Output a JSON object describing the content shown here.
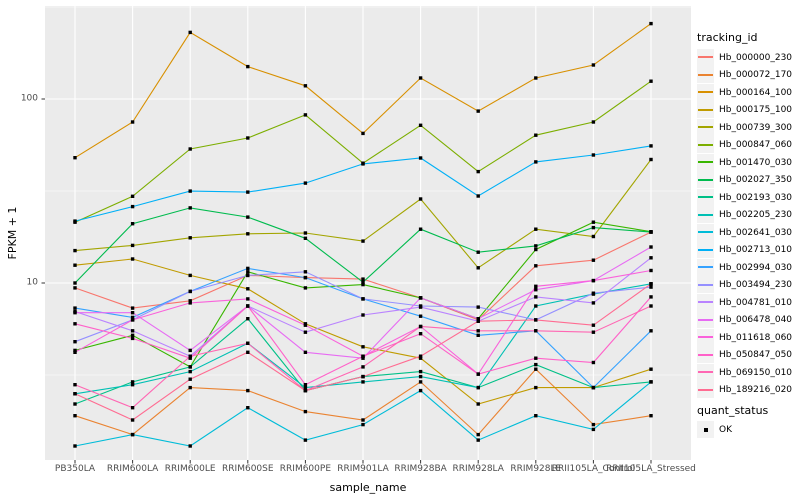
{
  "y_axis": {
    "label": "FPKM + 1",
    "ticks": [
      {
        "text": "100",
        "value": 100
      },
      {
        "text": "10",
        "value": 10
      }
    ]
  },
  "x_axis": {
    "label": "sample_name"
  },
  "legend": {
    "tracking_title": "tracking_id",
    "quant_title": "quant_status",
    "quant_items": [
      {
        "label": "OK",
        "marker": "black-square"
      }
    ]
  },
  "chart_data": {
    "type": "line",
    "title": "",
    "xlabel": "sample_name",
    "ylabel": "FPKM + 1",
    "y_scale": "log10",
    "ylim": [
      1,
      300
    ],
    "grid": "on",
    "legend_position": "right",
    "marker": "black-square",
    "categories": [
      "PB350LA",
      "RRIM600LA",
      "RRIM600LE",
      "RRIM600SE",
      "RRIM600PE",
      "RRIM901LA",
      "RRIM928BA",
      "RRIM928LA",
      "RRIM928LE",
      "RRII105LA_Control",
      "RRII105LA_Stressed"
    ],
    "series": [
      {
        "name": "Hb_000000_230",
        "color": "#F8766D",
        "values": [
          9.4,
          7.3,
          8.0,
          11.0,
          10.7,
          10.5,
          8.3,
          6.3,
          12.4,
          13.3,
          18.9
        ]
      },
      {
        "name": "Hb_000072_170",
        "color": "#EA8331",
        "values": [
          1.9,
          1.5,
          2.7,
          2.6,
          2.0,
          1.8,
          2.9,
          1.5,
          3.4,
          1.7,
          1.9
        ]
      },
      {
        "name": "Hb_000164_100",
        "color": "#D89000",
        "values": [
          48,
          75,
          230,
          150,
          118,
          65,
          130,
          86,
          130,
          153,
          257
        ]
      },
      {
        "name": "Hb_000175_100",
        "color": "#C09B00",
        "values": [
          12.5,
          13.5,
          11.0,
          9.3,
          6.0,
          4.5,
          3.9,
          2.2,
          2.7,
          2.7,
          3.4
        ]
      },
      {
        "name": "Hb_000739_300",
        "color": "#A3A500",
        "values": [
          15.0,
          16.0,
          17.6,
          18.5,
          18.7,
          16.9,
          28.6,
          12.1,
          19.6,
          17.9,
          46.9
        ]
      },
      {
        "name": "Hb_000847_060",
        "color": "#7CAE00",
        "values": [
          21.4,
          29.6,
          53.5,
          61.4,
          82.0,
          44.8,
          72.0,
          40.3,
          63.6,
          75.0,
          125.0
        ]
      },
      {
        "name": "Hb_001470_030",
        "color": "#39B600",
        "values": [
          4.3,
          5.2,
          3.5,
          11.5,
          9.4,
          9.8,
          8.3,
          6.4,
          15.2,
          21.4,
          19.0
        ]
      },
      {
        "name": "Hb_002027_350",
        "color": "#00BB4E",
        "values": [
          10.0,
          21.0,
          25.6,
          22.8,
          17.5,
          10.1,
          19.6,
          14.7,
          15.9,
          20.0,
          18.9
        ]
      },
      {
        "name": "Hb_002193_030",
        "color": "#00C087",
        "values": [
          2.2,
          2.9,
          3.5,
          6.4,
          2.6,
          3.1,
          3.3,
          2.7,
          3.6,
          2.7,
          2.9
        ]
      },
      {
        "name": "Hb_002205_230",
        "color": "#00C0B4",
        "values": [
          2.5,
          2.8,
          3.3,
          4.7,
          2.7,
          2.9,
          3.1,
          2.7,
          7.5,
          8.7,
          9.9
        ]
      },
      {
        "name": "Hb_002641_030",
        "color": "#00BCD8",
        "values": [
          1.3,
          1.5,
          1.3,
          2.1,
          1.4,
          1.7,
          2.6,
          1.4,
          1.9,
          1.6,
          2.9
        ]
      },
      {
        "name": "Hb_002713_010",
        "color": "#00B0F6",
        "values": [
          21.7,
          26.0,
          31.6,
          31.2,
          34.9,
          44.4,
          47.8,
          29.7,
          45.5,
          49.6,
          55.6
        ]
      },
      {
        "name": "Hb_002994_030",
        "color": "#35A2FF",
        "values": [
          7.3,
          6.5,
          9.0,
          12.0,
          10.7,
          8.2,
          6.6,
          5.2,
          5.5,
          2.7,
          5.5
        ]
      },
      {
        "name": "Hb_003494_230",
        "color": "#9590FF",
        "values": [
          4.8,
          6.3,
          9.0,
          11.0,
          11.5,
          8.2,
          7.5,
          7.4,
          6.3,
          8.8,
          9.5
        ]
      },
      {
        "name": "Hb_004781_010",
        "color": "#B983FF",
        "values": [
          7.0,
          5.5,
          4.0,
          7.5,
          5.4,
          6.7,
          7.4,
          6.2,
          8.4,
          7.8,
          13.7
        ]
      },
      {
        "name": "Hb_006478_040",
        "color": "#E76BF3",
        "values": [
          6.9,
          6.9,
          4.3,
          7.5,
          4.2,
          3.9,
          8.3,
          6.4,
          9.2,
          10.3,
          15.7
        ]
      },
      {
        "name": "Hb_011618_060",
        "color": "#FA62DB",
        "values": [
          4.2,
          6.3,
          7.8,
          8.2,
          5.9,
          4.0,
          5.8,
          3.2,
          9.6,
          10.3,
          11.7
        ]
      },
      {
        "name": "Hb_050847_050",
        "color": "#FF61C9",
        "values": [
          6.0,
          5.0,
          3.9,
          7.5,
          2.8,
          4.0,
          5.3,
          3.2,
          3.9,
          3.7,
          8.4
        ]
      },
      {
        "name": "Hb_069150_010",
        "color": "#FF67B3",
        "values": [
          2.8,
          2.1,
          4.0,
          4.7,
          2.6,
          3.5,
          5.8,
          5.5,
          5.5,
          5.4,
          7.5
        ]
      },
      {
        "name": "Hb_189216_020",
        "color": "#FF6C92",
        "values": [
          2.5,
          1.8,
          3.0,
          4.2,
          2.6,
          3.1,
          4.0,
          6.2,
          6.3,
          5.9,
          9.9
        ]
      }
    ]
  },
  "style": {
    "panel_bg": "#EBEBEB",
    "grid_color": "#FFFFFF",
    "tick_color": "#333333",
    "tick_label_color": "#4D4D4D",
    "marker_color": "#000000",
    "legend_key_bg": "#F2F2F2"
  }
}
